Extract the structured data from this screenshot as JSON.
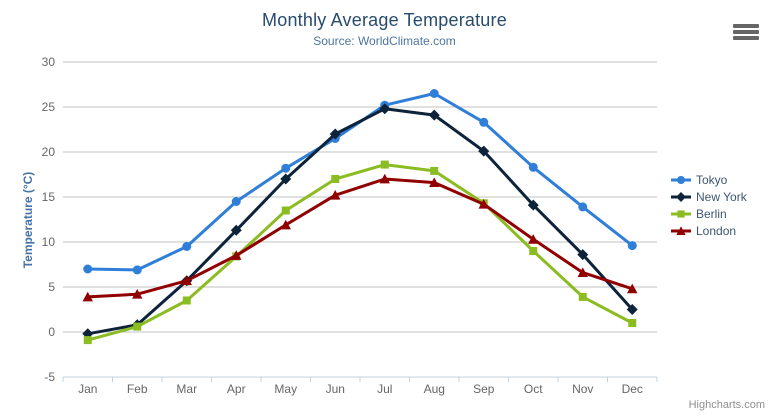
{
  "chart": {
    "title": "Monthly Average Temperature",
    "subtitle": "Source: WorldClimate.com",
    "y_axis_title": "Temperature (°C)",
    "credits": "Highcharts.com"
  },
  "colors": {
    "title": "#274b6d",
    "subtitle": "#4d759e",
    "axis_labels": "#666666",
    "y_axis_title": "#4572a7",
    "legend_text": "#3e576f",
    "gridline": "#c0c0c0",
    "x_axis_line": "#c0d0e0",
    "credits": "#8f8f8f",
    "export_icon": "#666666"
  },
  "icons": {
    "export_menu": "hamburger-icon"
  },
  "chart_data": {
    "type": "line",
    "title": "Monthly Average Temperature",
    "subtitle": "Source: WorldClimate.com",
    "categories": [
      "Jan",
      "Feb",
      "Mar",
      "Apr",
      "May",
      "Jun",
      "Jul",
      "Aug",
      "Sep",
      "Oct",
      "Nov",
      "Dec"
    ],
    "series": [
      {
        "name": "Tokyo",
        "color": "#2f7ed8",
        "marker": "circle",
        "values": [
          7.0,
          6.9,
          9.5,
          14.5,
          18.2,
          21.5,
          25.2,
          26.5,
          23.3,
          18.3,
          13.9,
          9.6
        ]
      },
      {
        "name": "New York",
        "color": "#0d233a",
        "marker": "diamond",
        "values": [
          -0.2,
          0.8,
          5.7,
          11.3,
          17.0,
          22.0,
          24.8,
          24.1,
          20.1,
          14.1,
          8.6,
          2.5
        ]
      },
      {
        "name": "Berlin",
        "color": "#8bbc21",
        "marker": "square",
        "values": [
          -0.9,
          0.6,
          3.5,
          8.4,
          13.5,
          17.0,
          18.6,
          17.9,
          14.3,
          9.0,
          3.9,
          1.0
        ]
      },
      {
        "name": "London",
        "color": "#910000",
        "marker": "triangle",
        "values": [
          3.9,
          4.2,
          5.7,
          8.5,
          11.9,
          15.2,
          17.0,
          16.6,
          14.2,
          10.3,
          6.6,
          4.8
        ]
      }
    ],
    "xlabel": "",
    "ylabel": "Temperature (°C)",
    "ylim": [
      -5,
      30
    ],
    "ytick_interval": 5,
    "ytick_labels": [
      "-5",
      "0",
      "5",
      "10",
      "15",
      "20",
      "25",
      "30"
    ],
    "grid": true,
    "legend_position": "right"
  }
}
